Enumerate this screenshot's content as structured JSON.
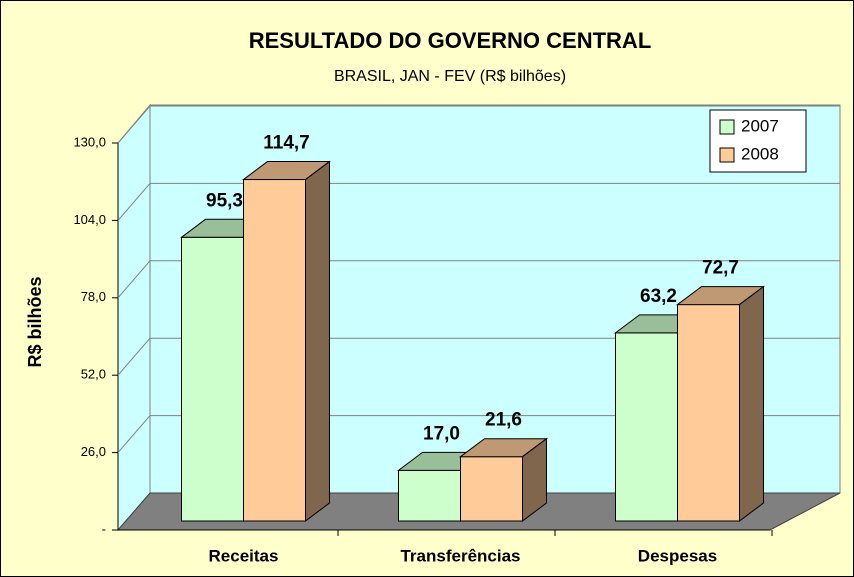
{
  "chart_data": {
    "type": "bar3d",
    "title": "RESULTADO DO GOVERNO CENTRAL",
    "subtitle": "BRASIL, JAN - FEV (R$ bilhões)",
    "y_label": "R$ bilhões",
    "categories": [
      "Receitas",
      "Transferências",
      "Despesas"
    ],
    "series": [
      {
        "name": "2007",
        "color": "#ccffcc",
        "values": [
          95.3,
          17.0,
          63.2
        ],
        "value_labels": [
          "95,3",
          "17,0",
          "63,2"
        ]
      },
      {
        "name": "2008",
        "color": "#ffcc99",
        "values": [
          114.7,
          21.6,
          72.7
        ],
        "value_labels": [
          "114,7",
          "21,6",
          "72,7"
        ]
      }
    ],
    "ylim": [
      0,
      130
    ],
    "yticks": [
      {
        "value": 0,
        "label": "-"
      },
      {
        "value": 26,
        "label": "26,0"
      },
      {
        "value": 52,
        "label": "52,0"
      },
      {
        "value": 78,
        "label": "78,0"
      },
      {
        "value": 104,
        "label": "104,0"
      },
      {
        "value": 130,
        "label": "130,0"
      }
    ],
    "grid": true,
    "legend": "top-right"
  }
}
